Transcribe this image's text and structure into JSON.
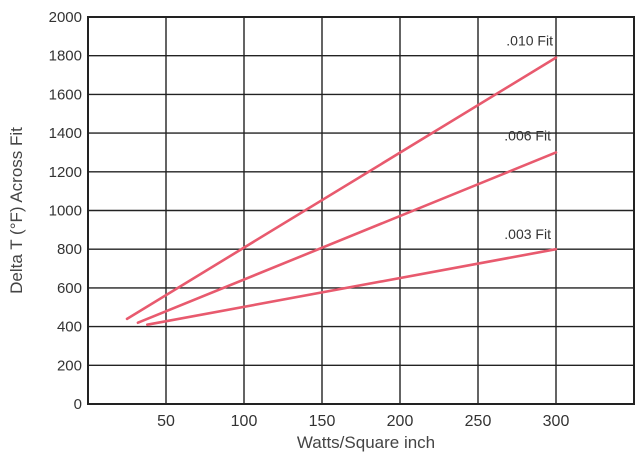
{
  "chart_data": {
    "type": "line",
    "title": "",
    "xlabel": "Watts/Square inch",
    "ylabel": "Delta T (°F) Across Fit",
    "xlim": [
      0,
      350
    ],
    "ylim": [
      0,
      2000
    ],
    "x_ticks": [
      50,
      100,
      150,
      200,
      250,
      300
    ],
    "y_ticks": [
      0,
      200,
      400,
      600,
      800,
      1000,
      1200,
      1400,
      1600,
      1800,
      2000
    ],
    "grid": true,
    "legend": "none",
    "line_color": "#e85a6e",
    "series": [
      {
        "name": ".010 Fit",
        "x": [
          25,
          300
        ],
        "y": [
          440,
          1790
        ]
      },
      {
        "name": ".006 Fit",
        "x": [
          32,
          300
        ],
        "y": [
          420,
          1300
        ]
      },
      {
        "name": ".003 Fit",
        "x": [
          38,
          300
        ],
        "y": [
          410,
          800
        ]
      }
    ]
  }
}
